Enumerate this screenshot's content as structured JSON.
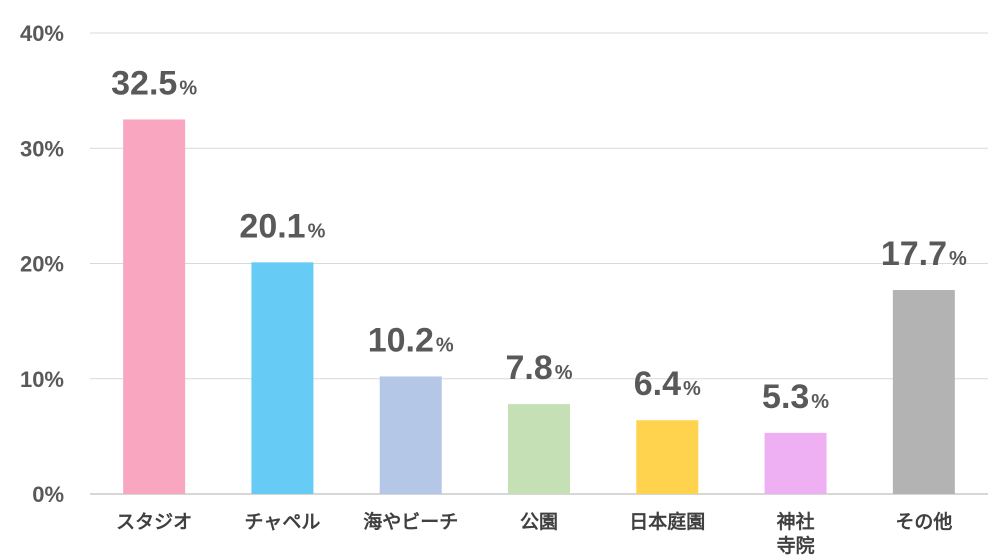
{
  "chart_data": {
    "type": "bar",
    "categories": [
      [
        "スタジオ"
      ],
      [
        "チャペル"
      ],
      [
        "海やビーチ"
      ],
      [
        "公園"
      ],
      [
        "日本庭園"
      ],
      [
        "神社",
        "寺院"
      ],
      [
        "その他"
      ]
    ],
    "values": [
      32.5,
      20.1,
      10.2,
      7.8,
      6.4,
      5.3,
      17.7
    ],
    "value_labels": [
      "32.5",
      "20.1",
      "10.2",
      "7.8",
      "6.4",
      "5.3",
      "17.7"
    ],
    "value_unit": "%",
    "colors": [
      "#f9a7c0",
      "#66cbf5",
      "#b4c7e7",
      "#c5e0b4",
      "#ffd34d",
      "#efb0f3",
      "#b3b3b3"
    ],
    "yticks": [
      {
        "value": 0,
        "label": "0%"
      },
      {
        "value": 10,
        "label": "10%"
      },
      {
        "value": 20,
        "label": "20%"
      },
      {
        "value": 30,
        "label": "30%"
      },
      {
        "value": 40,
        "label": "40%"
      }
    ],
    "ylim": [
      0,
      40
    ],
    "grid": true,
    "legend": "none",
    "title": "",
    "xlabel": "",
    "ylabel": ""
  }
}
